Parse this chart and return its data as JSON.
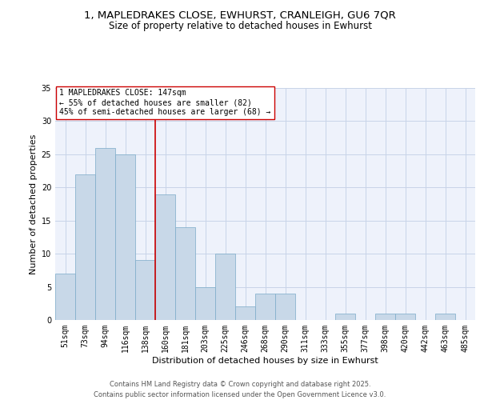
{
  "title_line1": "1, MAPLEDRAKES CLOSE, EWHURST, CRANLEIGH, GU6 7QR",
  "title_line2": "Size of property relative to detached houses in Ewhurst",
  "xlabel": "Distribution of detached houses by size in Ewhurst",
  "ylabel": "Number of detached properties",
  "categories": [
    "51sqm",
    "73sqm",
    "94sqm",
    "116sqm",
    "138sqm",
    "160sqm",
    "181sqm",
    "203sqm",
    "225sqm",
    "246sqm",
    "268sqm",
    "290sqm",
    "311sqm",
    "333sqm",
    "355sqm",
    "377sqm",
    "398sqm",
    "420sqm",
    "442sqm",
    "463sqm",
    "485sqm"
  ],
  "values": [
    7,
    22,
    26,
    25,
    9,
    19,
    14,
    5,
    10,
    2,
    4,
    4,
    0,
    0,
    1,
    0,
    1,
    1,
    0,
    1,
    0
  ],
  "bar_color": "#c8d8e8",
  "bar_edge_color": "#7aaac8",
  "grid_color": "#c8d4e8",
  "background_color": "#eef2fb",
  "vline_x": 4.5,
  "vline_color": "#cc0000",
  "annotation_text": "1 MAPLEDRAKES CLOSE: 147sqm\n← 55% of detached houses are smaller (82)\n45% of semi-detached houses are larger (68) →",
  "annotation_box_color": "#ffffff",
  "annotation_box_edge": "#cc0000",
  "annotation_text_color": "#000000",
  "ylim": [
    0,
    35
  ],
  "yticks": [
    0,
    5,
    10,
    15,
    20,
    25,
    30,
    35
  ],
  "footer_line1": "Contains HM Land Registry data © Crown copyright and database right 2025.",
  "footer_line2": "Contains public sector information licensed under the Open Government Licence v3.0.",
  "title_fontsize": 9.5,
  "subtitle_fontsize": 8.5,
  "axis_label_fontsize": 8,
  "tick_fontsize": 7,
  "annotation_fontsize": 7,
  "footer_fontsize": 6
}
